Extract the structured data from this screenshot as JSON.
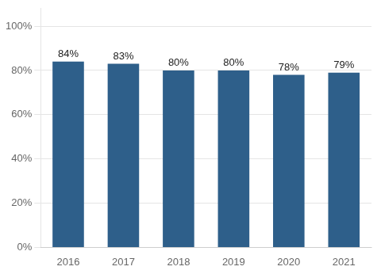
{
  "chart_data": {
    "type": "bar",
    "categories": [
      "2016",
      "2017",
      "2018",
      "2019",
      "2020",
      "2021"
    ],
    "values": [
      0.84,
      0.83,
      0.8,
      0.8,
      0.78,
      0.79
    ],
    "value_labels": [
      "84%",
      "83%",
      "80%",
      "80%",
      "78%",
      "79%"
    ],
    "color": "#2e5f8a",
    "ylim": [
      0,
      1.08
    ],
    "yticks": [
      {
        "value": 0,
        "label": "0%"
      },
      {
        "value": 0.2,
        "label": "20%"
      },
      {
        "value": 0.4,
        "label": "40%"
      },
      {
        "value": 0.6,
        "label": "60%"
      },
      {
        "value": 0.8,
        "label": "80%"
      },
      {
        "value": 1.0,
        "label": "100%"
      }
    ],
    "grid": true,
    "data_labels": true
  }
}
